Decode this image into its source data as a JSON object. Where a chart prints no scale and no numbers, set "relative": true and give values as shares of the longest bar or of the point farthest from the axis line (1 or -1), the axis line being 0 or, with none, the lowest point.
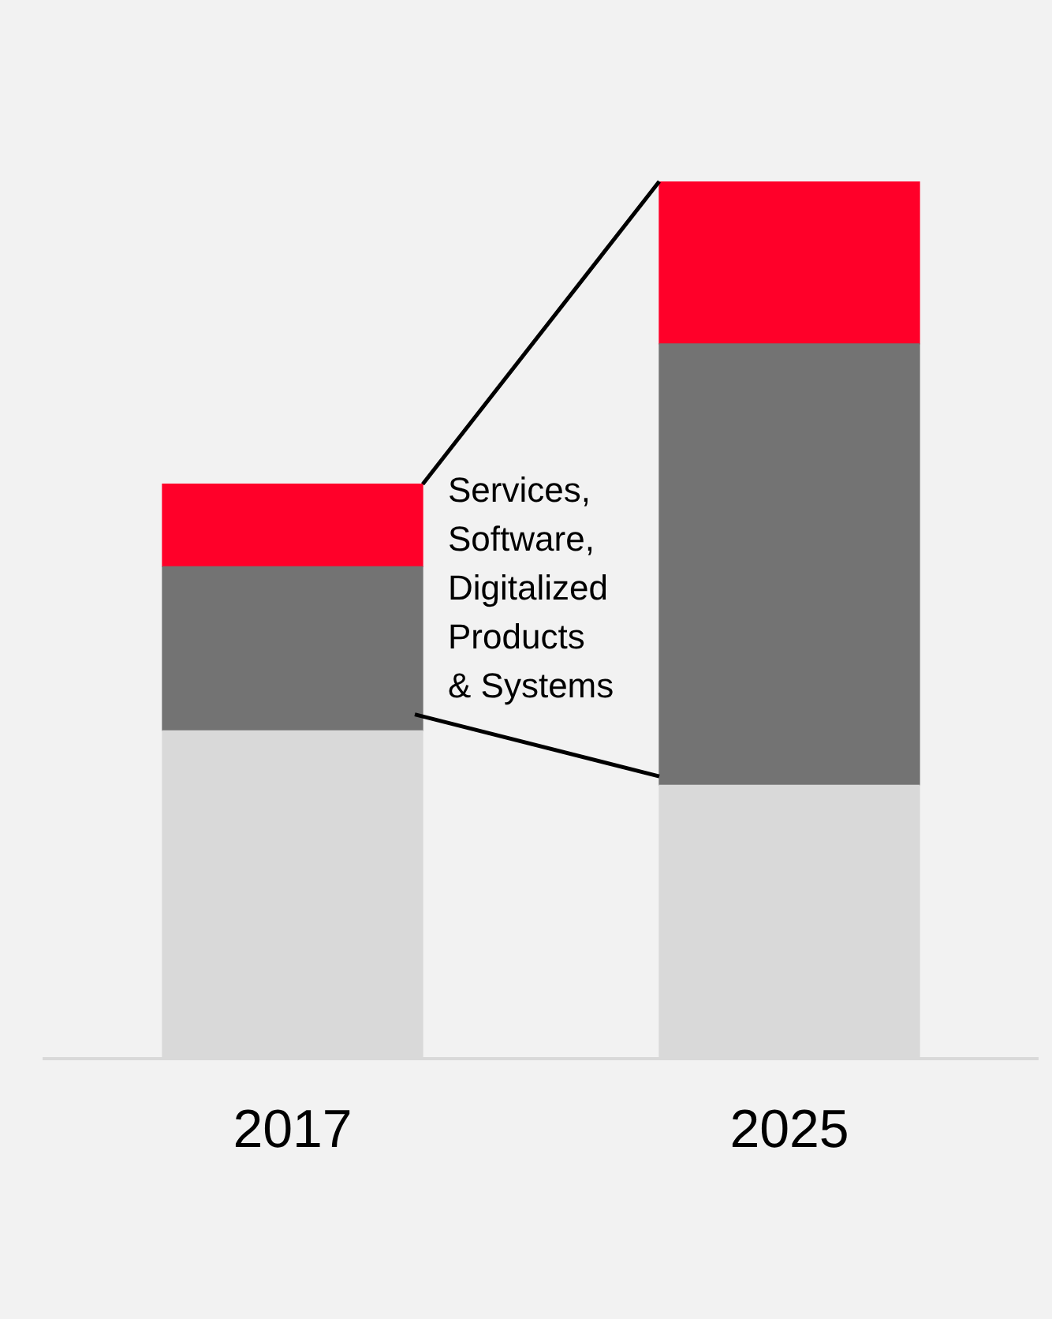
{
  "chart_data": {
    "type": "bar",
    "relative": true,
    "stacked": true,
    "categories": [
      "2017",
      "2025"
    ],
    "series": [
      {
        "color": "#d9d9d9",
        "values": [
          0.374,
          0.312
        ]
      },
      {
        "color": "#737373",
        "values": [
          0.187,
          0.503
        ]
      },
      {
        "color": "#ff0029",
        "values": [
          0.094,
          0.185
        ]
      }
    ],
    "annotations": [
      "Services, Software, Digitalized Products & Systems"
    ]
  }
}
